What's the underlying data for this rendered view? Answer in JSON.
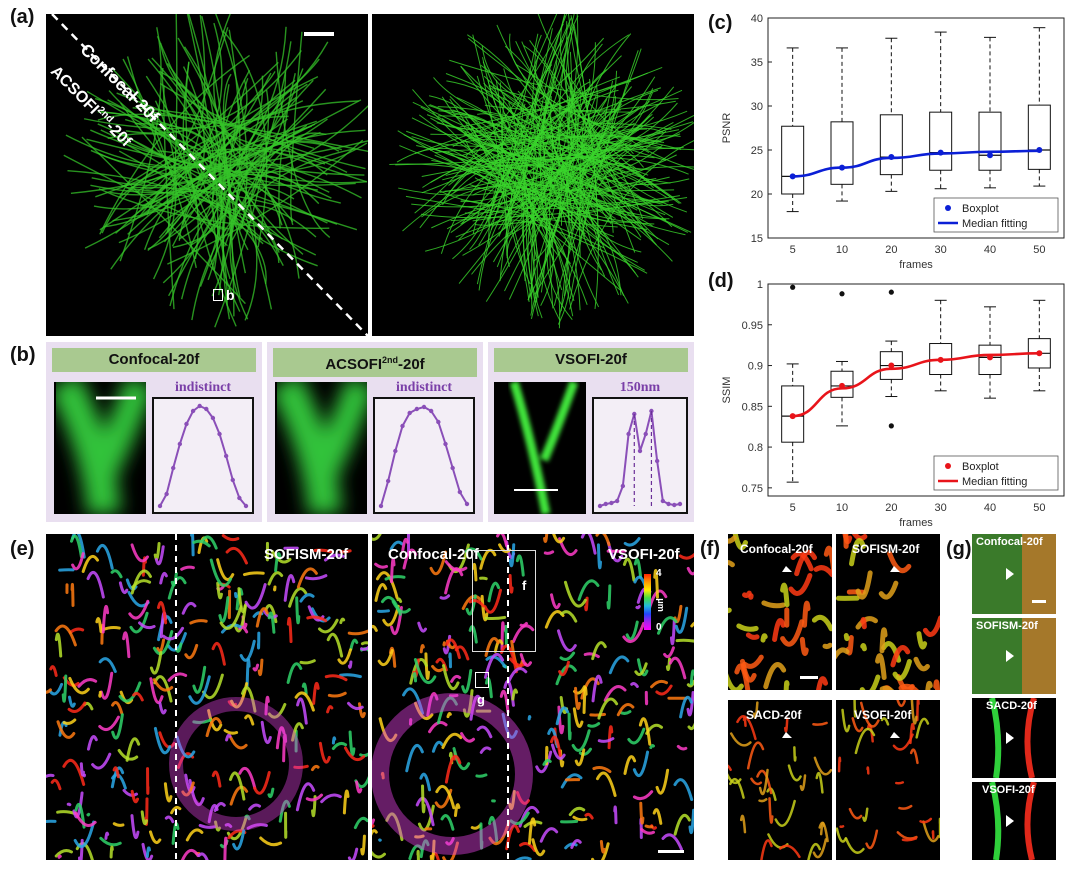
{
  "panel_labels": {
    "a": "(a)",
    "b": "(b)",
    "c": "(c)",
    "d": "(d)",
    "e": "(e)",
    "f": "(f)",
    "g": "(g)"
  },
  "panel_a": {
    "top_label": "Confocal-20f",
    "bottom_label_prefix": "ACSOFI",
    "bottom_label_sup": "2nd",
    "bottom_label_suffix": "-20f",
    "box_label": "b"
  },
  "panel_b": {
    "headers": [
      {
        "text": "Confocal-20f"
      },
      {
        "text": "ACSOFI",
        "sup": "2nd",
        "suffix": "-20f"
      },
      {
        "text": "VSOFI-20f"
      }
    ],
    "profile_titles": [
      "indistinct",
      "indistinct",
      "150nm"
    ],
    "profiles": [
      [
        0.0,
        0.12,
        0.38,
        0.62,
        0.82,
        0.95,
        1.0,
        0.97,
        0.88,
        0.72,
        0.5,
        0.26,
        0.08,
        0.0
      ],
      [
        0.0,
        0.25,
        0.55,
        0.8,
        0.93,
        0.97,
        0.99,
        0.95,
        0.84,
        0.62,
        0.38,
        0.14,
        0.02
      ],
      [
        0.0,
        0.02,
        0.03,
        0.05,
        0.2,
        0.72,
        0.92,
        0.55,
        0.72,
        0.95,
        0.45,
        0.05,
        0.02,
        0.01,
        0.02
      ]
    ]
  },
  "panel_e": {
    "left_label": "SOFISM-20f",
    "mid_label": "Confocal-20f",
    "right_label": "VSOFI-20f",
    "box_f": "f",
    "box_g": "g",
    "colorbar_max": "4",
    "colorbar_min": "0",
    "colorbar_unit": "μm"
  },
  "panel_f": {
    "labels": [
      "Confocal-20f",
      "SOFISM-20f",
      "SACD-20f",
      "VSOFI-20f"
    ]
  },
  "panel_g": {
    "labels": [
      "Confocal-20f",
      "SOFISM-20f",
      "SACD-20f",
      "VSOFI-20f"
    ]
  },
  "chart_data": [
    {
      "type": "boxplot",
      "panel": "c",
      "ylabel": "PSNR",
      "xlabel": "frames",
      "categories": [
        "5",
        "10",
        "20",
        "30",
        "40",
        "50"
      ],
      "ylim": [
        15,
        40
      ],
      "yticks": [
        15,
        20,
        25,
        30,
        35,
        40
      ],
      "boxes": [
        {
          "whisker_low": 18.0,
          "q1": 20.0,
          "median": 22.0,
          "q3": 27.7,
          "whisker_high": 36.6,
          "outliers": []
        },
        {
          "whisker_low": 19.2,
          "q1": 21.1,
          "median": 23.0,
          "q3": 28.2,
          "whisker_high": 36.6,
          "outliers": []
        },
        {
          "whisker_low": 20.3,
          "q1": 22.2,
          "median": 24.2,
          "q3": 29.0,
          "whisker_high": 37.7,
          "outliers": []
        },
        {
          "whisker_low": 20.6,
          "q1": 22.7,
          "median": 24.7,
          "q3": 29.3,
          "whisker_high": 38.4,
          "outliers": []
        },
        {
          "whisker_low": 20.7,
          "q1": 22.7,
          "median": 24.4,
          "q3": 29.3,
          "whisker_high": 37.8,
          "outliers": []
        },
        {
          "whisker_low": 20.9,
          "q1": 22.8,
          "median": 25.0,
          "q3": 30.1,
          "whisker_high": 38.9,
          "outliers": []
        }
      ],
      "fit": [
        22.0,
        23.0,
        24.1,
        24.6,
        24.8,
        24.9
      ],
      "color": "#0b1fd6",
      "legend": [
        "Boxplot",
        "Median fitting"
      ],
      "legend_position": "bottom-right"
    },
    {
      "type": "boxplot",
      "panel": "d",
      "ylabel": "SSIM",
      "xlabel": "frames",
      "categories": [
        "5",
        "10",
        "20",
        "30",
        "40",
        "50"
      ],
      "ylim": [
        0.74,
        1.0
      ],
      "yticks": [
        0.75,
        0.8,
        0.85,
        0.9,
        0.95,
        1
      ],
      "boxes": [
        {
          "whisker_low": 0.757,
          "q1": 0.806,
          "median": 0.838,
          "q3": 0.875,
          "whisker_high": 0.902,
          "outliers": [
            0.996
          ]
        },
        {
          "whisker_low": 0.826,
          "q1": 0.861,
          "median": 0.875,
          "q3": 0.893,
          "whisker_high": 0.905,
          "outliers": [
            0.988
          ]
        },
        {
          "whisker_low": 0.862,
          "q1": 0.883,
          "median": 0.9,
          "q3": 0.917,
          "whisker_high": 0.93,
          "outliers": [
            0.99,
            0.826
          ]
        },
        {
          "whisker_low": 0.869,
          "q1": 0.889,
          "median": 0.907,
          "q3": 0.927,
          "whisker_high": 0.98,
          "outliers": []
        },
        {
          "whisker_low": 0.86,
          "q1": 0.889,
          "median": 0.91,
          "q3": 0.925,
          "whisker_high": 0.972,
          "outliers": []
        },
        {
          "whisker_low": 0.869,
          "q1": 0.897,
          "median": 0.915,
          "q3": 0.933,
          "whisker_high": 0.98,
          "outliers": []
        }
      ],
      "fit": [
        0.838,
        0.872,
        0.896,
        0.907,
        0.913,
        0.915
      ],
      "color": "#e8141a",
      "legend": [
        "Boxplot",
        "Median fitting"
      ],
      "legend_position": "bottom-right"
    }
  ]
}
